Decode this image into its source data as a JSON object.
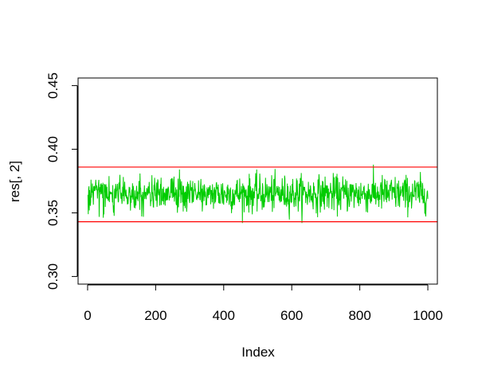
{
  "chart_data": {
    "type": "line",
    "title": "",
    "xlabel": "Index",
    "ylabel": "res[, 2]",
    "xlim": [
      -28,
      1028
    ],
    "ylim": [
      0.294,
      0.456
    ],
    "xticks": [
      0,
      200,
      400,
      600,
      800,
      1000
    ],
    "xtick_labels": [
      "0",
      "200",
      "400",
      "600",
      "800",
      "1000"
    ],
    "yticks": [
      0.3,
      0.35,
      0.4,
      0.45
    ],
    "ytick_labels": [
      "0.30",
      "0.35",
      "0.40",
      "0.45"
    ],
    "grid": false,
    "series": [
      {
        "color": "#00cc00",
        "n_points": 1000,
        "x_start": 1,
        "x_end": 1000,
        "mean": 0.365,
        "sd": 0.007,
        "min": 0.342,
        "max": 0.391
      }
    ],
    "hlines": [
      {
        "y": 0.386,
        "color": "#ff0000"
      },
      {
        "y": 0.343,
        "color": "#ff0000"
      }
    ]
  }
}
